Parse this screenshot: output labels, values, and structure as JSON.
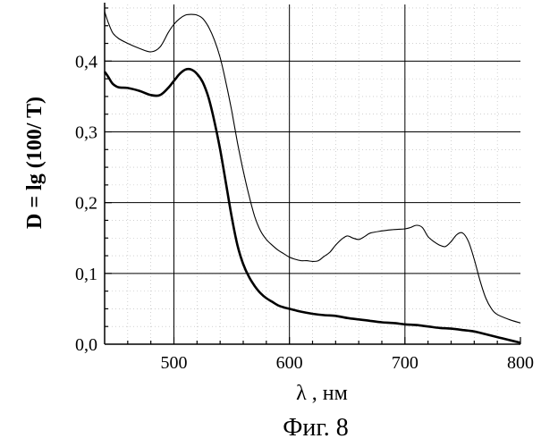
{
  "chart_data": {
    "type": "line",
    "title": "",
    "xlabel": "λ , нм",
    "ylabel": "D = lg (100/ T)",
    "caption": "Фиг. 8",
    "xlim": [
      440,
      800
    ],
    "ylim": [
      0,
      0.48
    ],
    "x_ticks": [
      500,
      600,
      700,
      800
    ],
    "x_tick_labels": [
      "500",
      "600",
      "700",
      "800"
    ],
    "y_ticks": [
      0.0,
      0.1,
      0.2,
      0.3,
      0.4
    ],
    "y_tick_labels": [
      "0,0",
      "0,1",
      "0,2",
      "0,3",
      "0,4"
    ],
    "grid": true,
    "legend": "none",
    "series": [
      {
        "color": "#000000",
        "line_style": "thin",
        "x": [
          440,
          443,
          447,
          452,
          460,
          470,
          480,
          488,
          495,
          500,
          505,
          510,
          515,
          520,
          525,
          530,
          535,
          540,
          545,
          550,
          555,
          560,
          565,
          570,
          575,
          580,
          585,
          590,
          595,
          600,
          605,
          610,
          615,
          620,
          625,
          630,
          635,
          640,
          645,
          650,
          655,
          660,
          665,
          670,
          680,
          690,
          700,
          705,
          710,
          715,
          720,
          725,
          730,
          735,
          740,
          745,
          750,
          755,
          760,
          765,
          770,
          775,
          780,
          790,
          800
        ],
        "y": [
          0.47,
          0.455,
          0.44,
          0.432,
          0.425,
          0.418,
          0.413,
          0.42,
          0.44,
          0.452,
          0.46,
          0.465,
          0.466,
          0.465,
          0.46,
          0.448,
          0.43,
          0.405,
          0.37,
          0.33,
          0.285,
          0.245,
          0.21,
          0.18,
          0.16,
          0.148,
          0.14,
          0.133,
          0.128,
          0.123,
          0.12,
          0.118,
          0.118,
          0.117,
          0.118,
          0.124,
          0.13,
          0.14,
          0.148,
          0.153,
          0.15,
          0.148,
          0.152,
          0.157,
          0.16,
          0.162,
          0.163,
          0.165,
          0.168,
          0.165,
          0.152,
          0.145,
          0.14,
          0.138,
          0.145,
          0.155,
          0.157,
          0.145,
          0.12,
          0.09,
          0.065,
          0.05,
          0.042,
          0.035,
          0.03
        ]
      },
      {
        "color": "#000000",
        "line_style": "thick",
        "x": [
          440,
          443,
          447,
          452,
          460,
          470,
          480,
          488,
          495,
          500,
          505,
          510,
          515,
          520,
          525,
          530,
          535,
          540,
          545,
          550,
          555,
          560,
          565,
          570,
          575,
          580,
          585,
          590,
          595,
          600,
          610,
          620,
          630,
          640,
          650,
          660,
          670,
          680,
          690,
          700,
          710,
          720,
          730,
          740,
          750,
          760,
          770,
          780,
          790,
          800
        ],
        "y": [
          0.385,
          0.378,
          0.368,
          0.363,
          0.362,
          0.358,
          0.352,
          0.352,
          0.362,
          0.372,
          0.382,
          0.388,
          0.388,
          0.382,
          0.37,
          0.348,
          0.315,
          0.275,
          0.228,
          0.18,
          0.14,
          0.113,
          0.095,
          0.082,
          0.072,
          0.065,
          0.06,
          0.055,
          0.052,
          0.05,
          0.046,
          0.043,
          0.041,
          0.04,
          0.037,
          0.035,
          0.033,
          0.031,
          0.03,
          0.028,
          0.027,
          0.025,
          0.023,
          0.022,
          0.02,
          0.018,
          0.014,
          0.01,
          0.006,
          0.002
        ]
      }
    ]
  }
}
